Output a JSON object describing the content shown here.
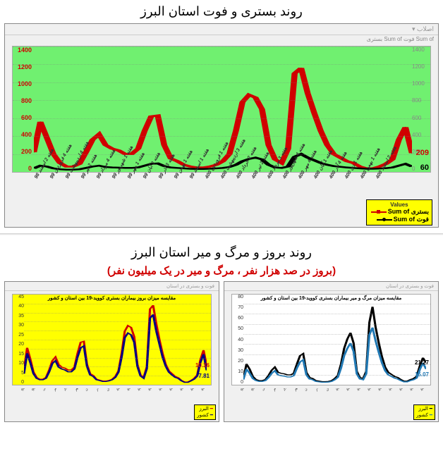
{
  "title1": "روند بستری و فوت استان البرز",
  "title2": "روند بروز و مرگ و میر استان البرز",
  "subtitle2": "(بروز در صد هزار نفر ، مرگ و میر در یک میلیون نفر)",
  "top_chart": {
    "header": "اصلاب ▾",
    "legend_mini": "Sum of فوت   Sum of بستری",
    "legend_values_label": "Values",
    "series1": {
      "label": "بستری Sum of",
      "color": "#d00000",
      "marker": "square",
      "endval": "209",
      "values": [
        220,
        560,
        380,
        200,
        100,
        60,
        60,
        90,
        220,
        360,
        420,
        300,
        260,
        240,
        200,
        200,
        260,
        460,
        620,
        630,
        300,
        150,
        120,
        80,
        60,
        50,
        50,
        60,
        80,
        120,
        200,
        460,
        780,
        860,
        830,
        700,
        300,
        140,
        100,
        260,
        1100,
        1160,
        880,
        660,
        460,
        300,
        200,
        160,
        120,
        100,
        60,
        40,
        40,
        60,
        90,
        140,
        360,
        500,
        209
      ]
    },
    "series2": {
      "label": "فوت Sum of",
      "color": "#000000",
      "marker": "circle",
      "endval": "60",
      "values": [
        40,
        70,
        60,
        40,
        30,
        25,
        25,
        30,
        45,
        60,
        70,
        55,
        50,
        48,
        45,
        45,
        50,
        70,
        90,
        95,
        65,
        50,
        45,
        40,
        35,
        33,
        33,
        36,
        40,
        45,
        55,
        80,
        120,
        145,
        160,
        140,
        80,
        50,
        45,
        60,
        170,
        200,
        160,
        130,
        100,
        80,
        65,
        58,
        50,
        45,
        40,
        35,
        35,
        38,
        42,
        50,
        70,
        90,
        60
      ]
    },
    "yticks": [
      "0",
      "200",
      "400",
      "600",
      "800",
      "1000",
      "1200",
      "1400"
    ],
    "ylim": [
      0,
      1400
    ],
    "xlabels": [
      "هفته 2 اسفند 98",
      "هفته 4 فروردین 99",
      "هفته 4 اردیبهشت 99",
      "هفته 2 تیر 99",
      "هفته 4 مرداد 99",
      "هفته 1 شهریور 99",
      "هفته 1 مهر 99",
      "هفته 3 آبان 99",
      "هفته 3 آذر 99",
      "هفته 1 بهمن 99",
      "هفته 1 اسفند 99",
      "هفته 1 فروردین 400",
      "هفته 3 اردیبهشت 400",
      "هفته 2 خرداد 400",
      "هفته 2 تیر 400",
      "هفته 3 مرداد 400",
      "هفته 4 شهریور 400",
      "هفته 4 مهر 400",
      "هفته 1 آبان 400",
      "هفته 4 آذر 400",
      "هفته 1 دی 400",
      "هفته 1 بهمن 400",
      "هفته 2 اسفند 400"
    ],
    "bg": "#70f070",
    "grid_color": "#a0a0a0"
  },
  "bottom_left": {
    "title": "مقایسه میزان بروز بیماران بستری کووید-19 بین استان و کشور",
    "bg": "#ffff00",
    "yticks": [
      "0",
      "5",
      "10",
      "15",
      "20",
      "25",
      "30",
      "35",
      "40",
      "45"
    ],
    "ylim": [
      0,
      45
    ],
    "series1": {
      "color": "#d00000",
      "label": "البرز",
      "endval": "10.36",
      "values": [
        8,
        20,
        14,
        7,
        4,
        3,
        3,
        4,
        8,
        13,
        15,
        11,
        9.5,
        9,
        8,
        8,
        9.5,
        17,
        23,
        23.5,
        11,
        6,
        5,
        3,
        2.5,
        2,
        2,
        2.3,
        3,
        4.5,
        7.5,
        17,
        29,
        32,
        31,
        26,
        11,
        5.3,
        4,
        9.8,
        41,
        43,
        33,
        24.5,
        17,
        11,
        7.5,
        6,
        4.5,
        3.8,
        2.3,
        1.5,
        1.5,
        2.3,
        3.4,
        5.3,
        13.5,
        18.7,
        10.36
      ]
    },
    "series2": {
      "color": "#000080",
      "label": "کشور",
      "endval": "7.81",
      "values": [
        6,
        17,
        12,
        6,
        3.5,
        2.7,
        2.7,
        3.5,
        7,
        11.5,
        13,
        9.5,
        8.5,
        8,
        7,
        7,
        8.5,
        15,
        20,
        21,
        10,
        5.3,
        4.5,
        2.7,
        2.3,
        1.8,
        1.8,
        2.1,
        2.7,
        4,
        6.8,
        15,
        25.5,
        28,
        27,
        23,
        10,
        4.7,
        3.5,
        8.7,
        36,
        38,
        29,
        22,
        15,
        10,
        6.8,
        5.3,
        4,
        3.4,
        2.1,
        1.3,
        1.3,
        2.1,
        3,
        4.7,
        12,
        16.5,
        7.81
      ]
    }
  },
  "bottom_right": {
    "title": "مقایسه میزان مرگ و میر بیماران بستری کووید-19 بین استان و کشور",
    "bg": "#ffffff",
    "yticks": [
      "0",
      "10",
      "20",
      "30",
      "40",
      "50",
      "60",
      "70",
      "80"
    ],
    "ylim": [
      0,
      80
    ],
    "series1": {
      "color": "#000000",
      "label": "البرز",
      "endval": "21.27",
      "values": [
        6,
        20,
        15,
        8,
        5,
        4,
        4,
        5,
        9,
        14,
        17,
        12,
        11,
        10.5,
        9.5,
        9.5,
        11,
        20,
        28,
        30,
        12,
        7,
        6,
        4,
        3.5,
        3,
        3,
        3.2,
        4,
        6,
        9,
        20,
        35,
        44,
        50,
        40,
        13,
        7,
        6,
        13,
        60,
        75,
        55,
        40,
        27,
        17,
        12,
        10,
        8,
        7,
        5,
        3.5,
        3.5,
        5,
        6,
        8,
        18,
        26,
        21.27
      ]
    },
    "series2": {
      "color": "#1f78b4",
      "label": "کشور",
      "endval": "15.07",
      "values": [
        5,
        15,
        11,
        6,
        4,
        3.2,
        3.2,
        4,
        7,
        11,
        13.5,
        9.5,
        8.7,
        8.3,
        7.5,
        7.5,
        8.7,
        16,
        22,
        24,
        9.5,
        5.5,
        4.8,
        3.2,
        2.8,
        2.4,
        2.4,
        2.6,
        3.2,
        4.8,
        7.2,
        16,
        28,
        35,
        40,
        32,
        10.5,
        5.5,
        4.8,
        10.5,
        48,
        55,
        42,
        31,
        21,
        13.5,
        9.5,
        8,
        6.4,
        5.5,
        4,
        2.8,
        2.8,
        4,
        4.8,
        6.4,
        14.5,
        21,
        15.07
      ]
    }
  },
  "small_xlabels": [
    "هفته 2 اسفند 98",
    "هفته 4 فروردین 99",
    "هفته 4 اردیبهشت",
    "هفته 2 تیر",
    "هفته 4 مرداد",
    "هفته 1 مهر",
    "هفته 3 آبان",
    "هفته 3 آذر",
    "هفته 1 بهمن",
    "هفته 1 فروردین 400",
    "هفته 3 اردیبهشت 400",
    "هفته 2 تیر 400",
    "هفته 3 مرداد 400",
    "هفته 4 شهریور 400",
    "هفته 1 آبان 400",
    "هفته 4 آذر 400",
    "هفته 1 بهمن 400",
    "هفته 2 اسفند 400"
  ]
}
